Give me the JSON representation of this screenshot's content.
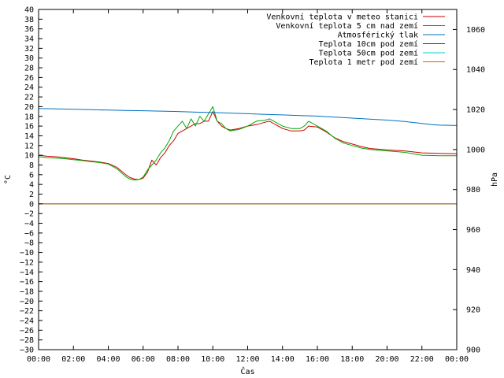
{
  "chart_data": {
    "type": "line",
    "xlabel": "Čas",
    "ylabel": "°C",
    "y2label": "hPa",
    "xlim": [
      0,
      24
    ],
    "ylim": [
      -30,
      40
    ],
    "y2lim": [
      900,
      1070
    ],
    "x_ticks": [
      "00:00",
      "02:00",
      "04:00",
      "06:00",
      "08:00",
      "10:00",
      "12:00",
      "14:00",
      "16:00",
      "18:00",
      "20:00",
      "22:00",
      "00:00"
    ],
    "y_ticks": [
      "40",
      "38",
      "36",
      "34",
      "32",
      "30",
      "28",
      "26",
      "24",
      "22",
      "20",
      "18",
      "16",
      "14",
      "12",
      "10",
      "8",
      "6",
      "4",
      "2",
      "0",
      "−2",
      "−4",
      "−6",
      "−8",
      "−10",
      "−12",
      "−14",
      "−16",
      "−18",
      "−20",
      "−22",
      "−24",
      "−26",
      "−28",
      "−30"
    ],
    "y2_ticks": [
      "1060",
      "1040",
      "1020",
      "1000",
      "980",
      "960",
      "940",
      "920",
      "900"
    ],
    "legend_position": "top-right",
    "series": [
      {
        "name": "Venkovní teplota v meteo stanici",
        "color": "#cc0000",
        "axis": "y",
        "x": [
          0,
          0.5,
          1,
          1.5,
          2,
          2.5,
          3,
          3.5,
          4,
          4.5,
          5,
          5.25,
          5.5,
          5.75,
          6,
          6.25,
          6.5,
          6.75,
          7,
          7.25,
          7.5,
          7.75,
          8,
          8.25,
          8.5,
          8.75,
          9,
          9.25,
          9.5,
          9.75,
          10,
          10.25,
          10.5,
          10.75,
          11,
          11.5,
          12,
          12.5,
          13,
          13.25,
          13.5,
          13.75,
          14,
          14.5,
          15,
          15.25,
          15.5,
          16,
          16.5,
          17,
          17.5,
          18,
          18.5,
          19,
          20,
          21,
          22,
          23,
          24
        ],
        "y": [
          10,
          9.8,
          9.7,
          9.5,
          9.3,
          9.0,
          8.8,
          8.6,
          8.3,
          7.5,
          6.0,
          5.4,
          5.1,
          5.0,
          5.3,
          6.5,
          9.0,
          8.0,
          9.5,
          10.5,
          12,
          13,
          14.5,
          15,
          15.5,
          16,
          16.5,
          16.5,
          17,
          17,
          19,
          17,
          16,
          15.5,
          15.2,
          15.5,
          16,
          16.3,
          16.8,
          17,
          16.5,
          16,
          15.5,
          15,
          15.0,
          15.2,
          16,
          15.8,
          14.8,
          13.6,
          12.8,
          12.3,
          11.8,
          11.4,
          11.1,
          10.9,
          10.5,
          10.4,
          10.3
        ]
      },
      {
        "name": "Venkovní teplota 5 cm nad zemí",
        "color": "#00aa00",
        "axis": "y",
        "x": [
          0,
          0.5,
          1,
          1.5,
          2,
          2.5,
          3,
          3.5,
          4,
          4.5,
          5,
          5.25,
          5.5,
          5.75,
          6,
          6.25,
          6.5,
          6.75,
          7,
          7.25,
          7.5,
          7.75,
          8,
          8.25,
          8.5,
          8.75,
          9,
          9.25,
          9.5,
          9.75,
          10,
          10.25,
          10.5,
          10.75,
          11,
          11.5,
          12,
          12.5,
          13,
          13.25,
          13.5,
          13.75,
          14,
          14.5,
          15,
          15.25,
          15.5,
          16,
          16.5,
          17,
          17.5,
          18,
          18.5,
          19,
          20,
          21,
          22,
          23,
          24
        ],
        "y": [
          9.7,
          9.5,
          9.4,
          9.3,
          9.1,
          8.9,
          8.7,
          8.5,
          8.2,
          7.2,
          5.6,
          5.1,
          4.9,
          5.0,
          5.5,
          7.0,
          8.0,
          9.0,
          10.5,
          11.5,
          13,
          15,
          16,
          17,
          15.5,
          17.5,
          16,
          18,
          17,
          18.5,
          20,
          17,
          16.5,
          15.5,
          15,
          15.3,
          16,
          17,
          17.2,
          17.5,
          17,
          16.5,
          16,
          15.5,
          15.5,
          16,
          17,
          16,
          15,
          13.5,
          12.5,
          12,
          11.5,
          11.2,
          10.9,
          10.6,
          10.0,
          9.9,
          9.9
        ]
      },
      {
        "name": "Atmosférický tlak",
        "color": "#0070c0",
        "axis": "y2",
        "x": [
          0,
          1,
          2,
          3,
          4,
          5,
          6,
          7,
          8,
          9,
          10,
          11,
          12,
          13,
          14,
          15,
          16,
          17,
          18,
          19,
          20,
          21,
          22,
          22.5,
          23,
          23.5,
          24
        ],
        "y": [
          1020.5,
          1020.3,
          1020.1,
          1019.9,
          1019.7,
          1019.5,
          1019.4,
          1019.2,
          1019.0,
          1018.7,
          1018.5,
          1018.2,
          1017.9,
          1017.6,
          1017.3,
          1017.0,
          1016.7,
          1016.2,
          1015.7,
          1015.2,
          1014.7,
          1014.0,
          1013.0,
          1012.5,
          1012.2,
          1012.1,
          1012.0
        ]
      },
      {
        "name": "Teplota 10cm pod zemí",
        "color": "#880088",
        "axis": "y",
        "x": [
          0,
          24
        ],
        "y": [
          0,
          0
        ]
      },
      {
        "name": "Teplota 50cm pod zemí",
        "color": "#00cccc",
        "axis": "y",
        "x": [
          0,
          24
        ],
        "y": [
          0,
          0
        ]
      },
      {
        "name": "Teplota 1 metr pod zemí",
        "color": "#cc6600",
        "axis": "y",
        "x": [
          0,
          24
        ],
        "y": [
          0,
          0
        ]
      }
    ]
  }
}
